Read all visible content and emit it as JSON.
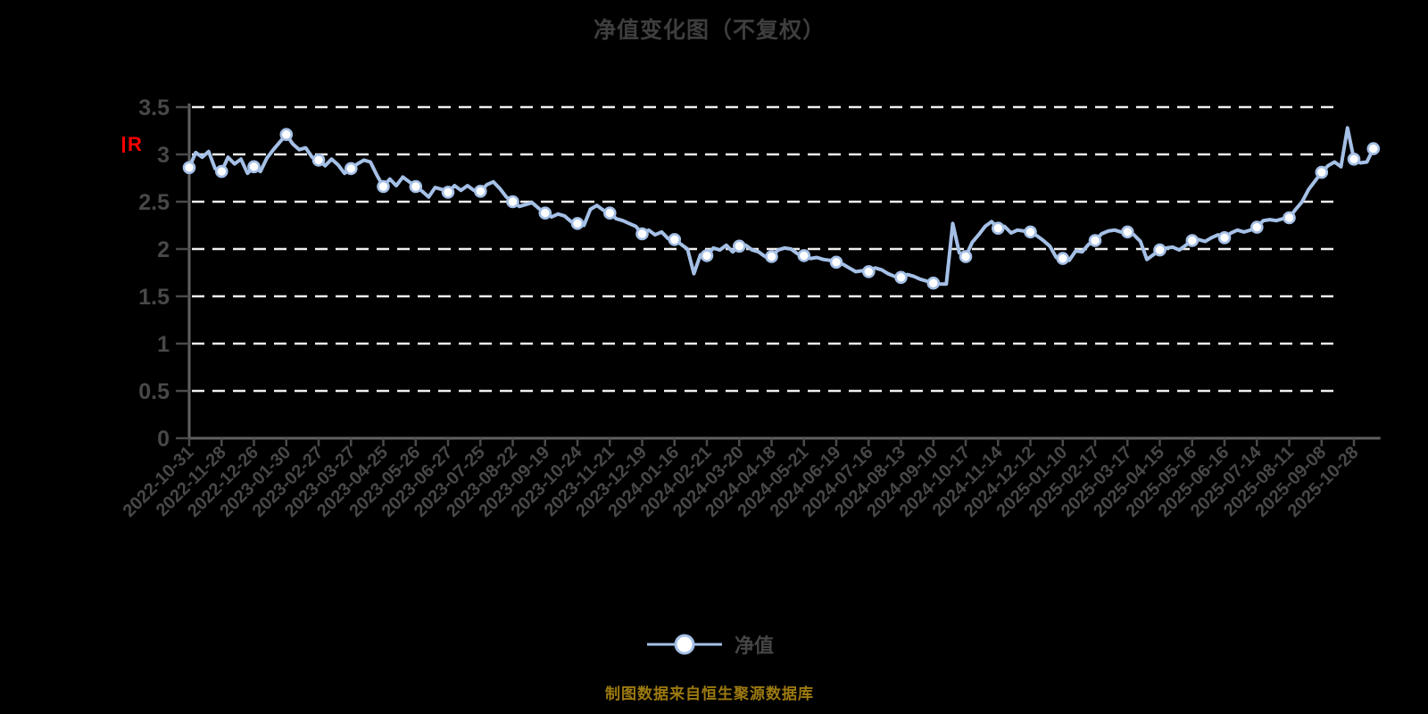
{
  "title": "净值变化图（不复权）",
  "red_marker": {
    "label": "R"
  },
  "legend": {
    "label": "净值"
  },
  "source_note": "制图数据来自恒生聚源数据库",
  "chart_data": {
    "type": "line",
    "title": "净值变化图（不复权）",
    "xlabel": "",
    "ylabel": "",
    "ylim": [
      0,
      3.5
    ],
    "grid": "horizontal-dashed",
    "legend_position": "bottom-center",
    "y_ticks": [
      3.5,
      3,
      2.5,
      2,
      1.5,
      1,
      0.5,
      0
    ],
    "x_tick_labels": [
      "2022-10-31",
      "2022-11-28",
      "2022-12-26",
      "2023-01-30",
      "2023-02-27",
      "2023-03-27",
      "2023-04-25",
      "2023-05-26",
      "2023-06-27",
      "2023-07-25",
      "2023-08-22",
      "2023-09-19",
      "2023-10-24",
      "2023-11-21",
      "2023-12-19",
      "2024-01-16",
      "2024-02-21",
      "2024-03-20",
      "2024-04-18",
      "2024-05-21",
      "2024-06-19",
      "2024-07-16",
      "2024-08-13",
      "2024-09-10",
      "2024-10-17",
      "2024-11-14",
      "2024-12-12",
      "2025-01-10",
      "2025-02-17",
      "2025-03-17",
      "2025-04-15",
      "2025-05-16",
      "2025-06-16",
      "2025-07-14",
      "2025-08-11",
      "2025-09-08",
      "2025-10-28"
    ],
    "points_per_interval": 5,
    "series": [
      {
        "name": "净值",
        "marker_every": 5,
        "values": [
          2.86,
          3.02,
          2.97,
          3.03,
          2.85,
          2.82,
          2.97,
          2.9,
          2.95,
          2.8,
          2.87,
          2.82,
          2.96,
          3.05,
          3.13,
          3.21,
          3.11,
          3.05,
          3.07,
          2.97,
          2.94,
          2.88,
          2.95,
          2.89,
          2.8,
          2.85,
          2.9,
          2.94,
          2.92,
          2.78,
          2.66,
          2.74,
          2.67,
          2.76,
          2.71,
          2.66,
          2.61,
          2.55,
          2.65,
          2.63,
          2.6,
          2.67,
          2.62,
          2.67,
          2.62,
          2.61,
          2.68,
          2.71,
          2.64,
          2.55,
          2.5,
          2.45,
          2.47,
          2.49,
          2.43,
          2.38,
          2.34,
          2.37,
          2.35,
          2.29,
          2.27,
          2.25,
          2.42,
          2.46,
          2.41,
          2.38,
          2.32,
          2.3,
          2.27,
          2.24,
          2.16,
          2.2,
          2.15,
          2.18,
          2.11,
          2.1,
          2.05,
          2.0,
          1.74,
          1.94,
          1.93,
          2.01,
          1.99,
          2.04,
          1.97,
          2.03,
          2.04,
          1.99,
          1.97,
          1.92,
          1.92,
          1.99,
          2.01,
          2.0,
          1.95,
          1.93,
          1.9,
          1.91,
          1.89,
          1.88,
          1.86,
          1.84,
          1.8,
          1.76,
          1.77,
          1.76,
          1.8,
          1.78,
          1.74,
          1.71,
          1.7,
          1.73,
          1.71,
          1.68,
          1.66,
          1.64,
          1.63,
          1.63,
          2.27,
          1.96,
          1.92,
          2.07,
          2.15,
          2.24,
          2.29,
          2.22,
          2.24,
          2.17,
          2.2,
          2.19,
          2.18,
          2.14,
          2.09,
          2.03,
          1.91,
          1.9,
          1.88,
          1.98,
          1.97,
          2.05,
          2.09,
          2.16,
          2.19,
          2.2,
          2.18,
          2.18,
          2.15,
          2.08,
          1.89,
          1.94,
          1.99,
          2.01,
          2.02,
          1.99,
          2.04,
          2.09,
          2.1,
          2.08,
          2.12,
          2.15,
          2.12,
          2.17,
          2.2,
          2.18,
          2.2,
          2.23,
          2.3,
          2.31,
          2.3,
          2.32,
          2.33,
          2.42,
          2.5,
          2.63,
          2.72,
          2.81,
          2.88,
          2.92,
          2.87,
          3.28,
          2.95,
          2.91,
          2.92,
          3.06
        ]
      }
    ],
    "colors": {
      "background": "#000000",
      "line": "#a5c0e6",
      "marker_fill": "#ffffff",
      "marker_stroke": "#a5c0e6",
      "gridline": "#efefef",
      "axis_line": "#606060",
      "tick": "#4a4a4a",
      "axis_text": "#484848",
      "title_text": "#3e3e3e",
      "source_text": "#9c7a10",
      "red_marker": "#ff0000"
    }
  }
}
